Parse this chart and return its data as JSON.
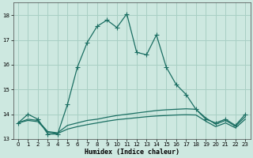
{
  "xlabel": "Humidex (Indice chaleur)",
  "bg_color": "#cde8e0",
  "grid_color": "#a8cfc4",
  "line_color": "#1a6e62",
  "x": [
    0,
    1,
    2,
    3,
    4,
    5,
    6,
    7,
    8,
    9,
    10,
    11,
    12,
    13,
    14,
    15,
    16,
    17,
    18,
    19,
    20,
    21,
    22,
    23
  ],
  "line_max": [
    13.65,
    14.0,
    13.8,
    13.2,
    13.2,
    14.4,
    15.9,
    16.9,
    17.55,
    17.8,
    17.5,
    18.05,
    16.5,
    16.4,
    17.2,
    15.9,
    15.2,
    14.8,
    14.2,
    13.8,
    13.65,
    13.8,
    13.55,
    14.0
  ],
  "line_mid": [
    13.65,
    13.8,
    13.75,
    13.3,
    13.25,
    13.55,
    13.65,
    13.75,
    13.8,
    13.88,
    13.95,
    14.0,
    14.05,
    14.1,
    14.15,
    14.18,
    14.2,
    14.22,
    14.2,
    13.85,
    13.6,
    13.75,
    13.52,
    13.9
  ],
  "line_min": [
    13.65,
    13.75,
    13.7,
    13.28,
    13.22,
    13.4,
    13.5,
    13.58,
    13.65,
    13.72,
    13.78,
    13.82,
    13.86,
    13.9,
    13.93,
    13.95,
    13.97,
    13.98,
    13.97,
    13.72,
    13.5,
    13.65,
    13.45,
    13.8
  ],
  "ylim": [
    13.0,
    18.5
  ],
  "xlim": [
    -0.5,
    23.5
  ],
  "yticks": [
    13,
    14,
    15,
    16,
    17,
    18
  ],
  "xticks": [
    0,
    1,
    2,
    3,
    4,
    5,
    6,
    7,
    8,
    9,
    10,
    11,
    12,
    13,
    14,
    15,
    16,
    17,
    18,
    19,
    20,
    21,
    22,
    23
  ]
}
